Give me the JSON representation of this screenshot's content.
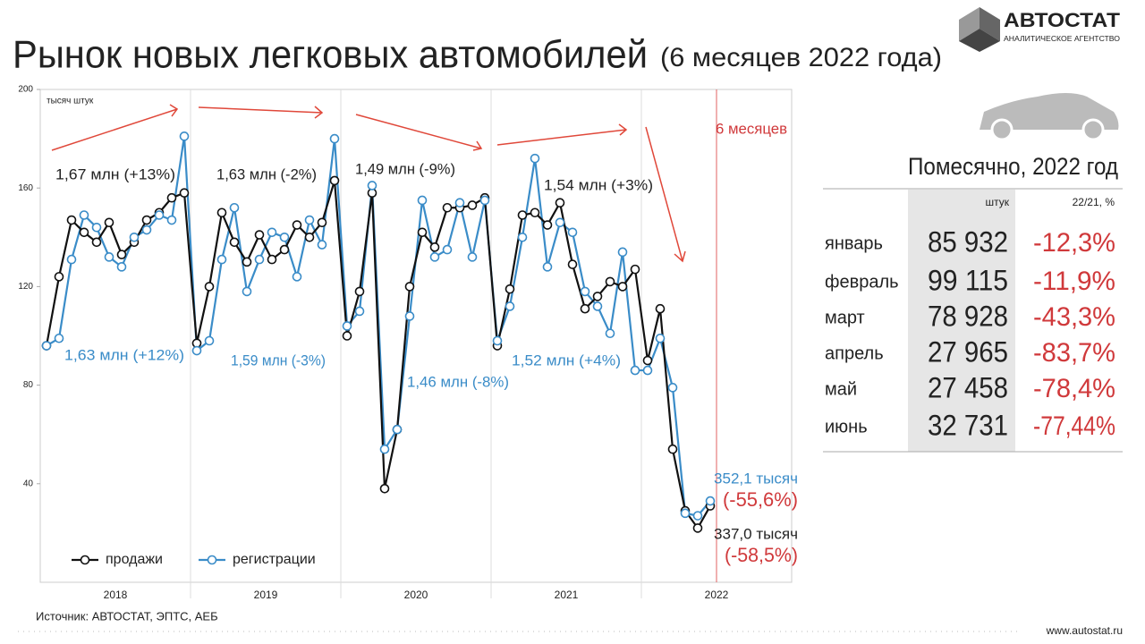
{
  "header": {
    "title": "Рынок новых легковых автомобилей",
    "subtitle": "(6 месяцев 2022 года)",
    "logo": "АВТОСТАТ",
    "logo_sub": "АНАЛИТИЧЕСКОЕ АГЕНТСТВО"
  },
  "chart_data": {
    "type": "line",
    "y_label": "тысяч штук",
    "categories": [
      null,
      null,
      null,
      null,
      null,
      null,
      null,
      null,
      null,
      null,
      null,
      null,
      null,
      null,
      null,
      null,
      null,
      null,
      null,
      null,
      null,
      null,
      null,
      null,
      null,
      null,
      null,
      null,
      null,
      null,
      null,
      null,
      null,
      null,
      null,
      null,
      null,
      null,
      null,
      null,
      null,
      null,
      null,
      null,
      null,
      null,
      null,
      null,
      null,
      null,
      null,
      null,
      null,
      null
    ],
    "groups": [
      "2018",
      "2019",
      "2020",
      "2021",
      "2022"
    ],
    "series": [
      {
        "name": "продажи",
        "color": "#111111",
        "values": [
          96,
          124,
          147,
          142,
          138,
          146,
          133,
          138,
          147,
          150,
          156,
          158,
          97,
          120,
          150,
          138,
          130,
          141,
          131,
          135,
          145,
          140,
          146,
          163,
          100,
          118,
          158,
          38,
          62,
          120,
          142,
          136,
          152,
          152,
          153,
          156,
          96,
          119,
          149,
          150,
          145,
          154,
          129,
          111,
          116,
          122,
          120,
          127,
          90,
          111,
          54,
          29,
          22,
          31
        ]
      },
      {
        "name": "регистрации",
        "color": "#3a8cc8",
        "values": [
          96,
          99,
          131,
          149,
          144,
          132,
          128,
          140,
          143,
          149,
          147,
          181,
          94,
          98,
          131,
          152,
          118,
          131,
          142,
          140,
          124,
          147,
          137,
          180,
          104,
          110,
          161,
          54,
          62,
          108,
          155,
          132,
          135,
          154,
          132,
          155,
          98,
          112,
          140,
          172,
          128,
          146,
          142,
          118,
          112,
          101,
          134,
          86,
          86,
          99,
          79,
          28,
          27,
          33
        ]
      }
    ],
    "ylim": [
      0,
      200
    ],
    "yticks": [
      40,
      80,
      120,
      160,
      200
    ],
    "legend": "lower left",
    "marker_line": "6 месяцев",
    "annotations": [
      "1,67 млн (+13%)",
      "1,63 млн (-2%)",
      "1,49 млн (-9%)",
      "1,54 млн (+3%)",
      "1,63 млн (+12%)",
      "1,59 млн (-3%)",
      "1,46 млн (-8%)",
      "1,52 млн (+4%)",
      "352,1 тысяч",
      "(-55,6%)",
      "337,0 тысяч",
      "(-58,5%)"
    ]
  },
  "table": {
    "title": "Помесячно, 2022 год",
    "headers": [
      "штук",
      "22/21, %"
    ],
    "rows": [
      [
        "январь",
        "85 932",
        "-12,3%"
      ],
      [
        "февраль",
        "99 115",
        "-11,9%"
      ],
      [
        "март",
        "78 928",
        "-43,3%"
      ],
      [
        "апрель",
        "27 965",
        "-83,7%"
      ],
      [
        "май",
        "27 458",
        "-78,4%"
      ],
      [
        "июнь",
        "32 731",
        "-77,44%"
      ]
    ]
  },
  "footer": {
    "source": "Источник: АВТОСТАТ, ЭПТС, АЕБ",
    "site": "www.autostat.ru"
  }
}
